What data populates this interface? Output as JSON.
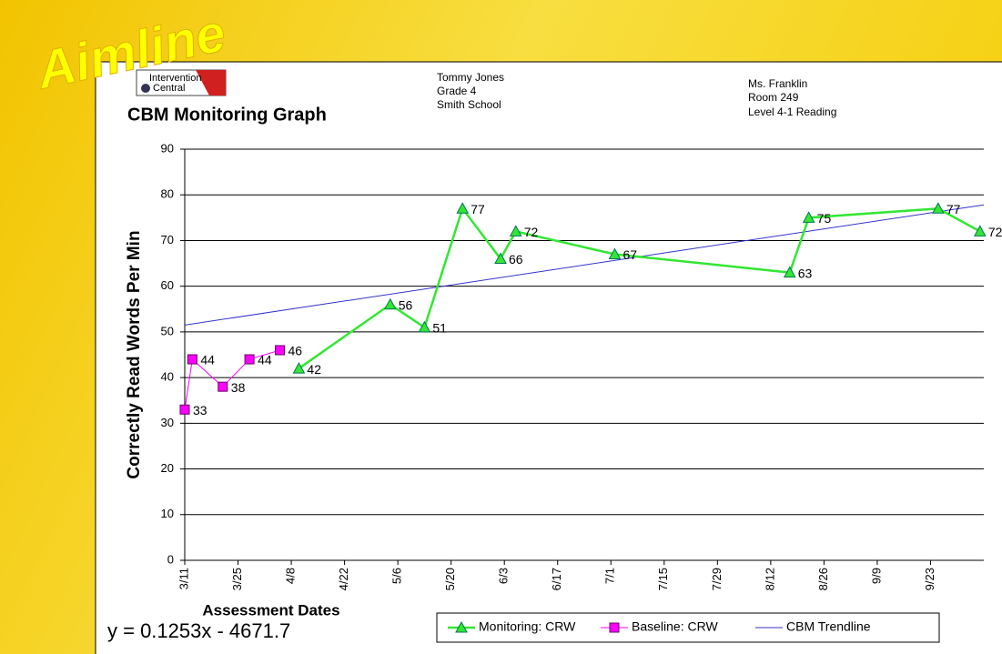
{
  "slide": {
    "title": "Aimline",
    "logo": [
      "Intervention",
      "Central"
    ]
  },
  "header": {
    "student": [
      "Tommy Jones",
      "Grade 4",
      "Smith School"
    ],
    "teacher": [
      "Ms. Franklin",
      "Room 249",
      "Level 4-1 Reading"
    ]
  },
  "chart_data": {
    "type": "line",
    "title": "CBM Monitoring Graph",
    "ylabel": "Correctly Read Words Per Min",
    "xlabel": "Assessment Dates",
    "annotation": "y = 0.1253x - 4671.7",
    "xlim": [
      "3/11",
      "10/7"
    ],
    "xticks": [
      "3/11",
      "3/25",
      "4/8",
      "4/22",
      "5/6",
      "5/20",
      "6/3",
      "6/17",
      "7/1",
      "7/15",
      "7/29",
      "8/12",
      "8/26",
      "9/9",
      "9/23"
    ],
    "ylim": [
      0,
      90
    ],
    "yticks": [
      0,
      10,
      20,
      30,
      40,
      50,
      60,
      70,
      80,
      90
    ],
    "grid": true,
    "series": [
      {
        "name": "Monitoring: CRW",
        "color": "#33e633",
        "marker": "triangle",
        "x": [
          "4/10",
          "5/4",
          "5/13",
          "5/23",
          "6/2",
          "6/6",
          "7/2",
          "8/17",
          "8/22",
          "9/25",
          "10/6"
        ],
        "values": [
          42,
          56,
          51,
          77,
          66,
          72,
          67,
          63,
          75,
          77,
          72
        ]
      },
      {
        "name": "Baseline: CRW",
        "color": "#ff00ff",
        "marker": "square",
        "x": [
          "3/11",
          "3/13",
          "3/21",
          "3/28",
          "4/5"
        ],
        "values": [
          33,
          44,
          38,
          44,
          46
        ]
      },
      {
        "name": "CBM Trendline",
        "color": "#3333cc",
        "marker": "none",
        "x": [
          "3/11",
          "10/7"
        ],
        "values": [
          51.5,
          77.8
        ]
      }
    ]
  }
}
